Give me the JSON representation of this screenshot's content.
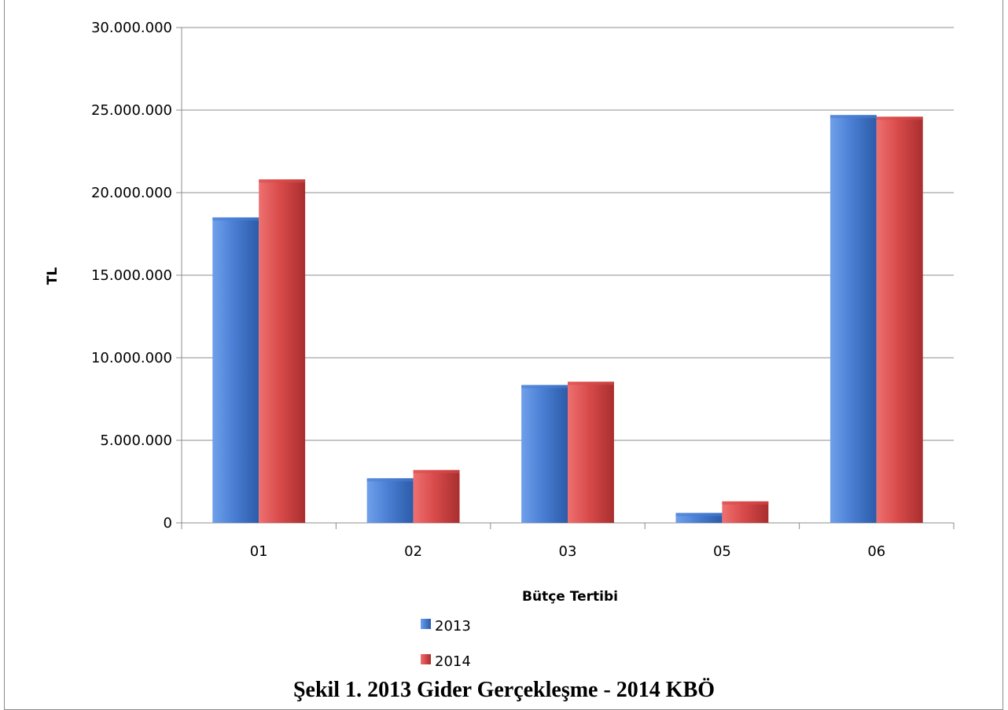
{
  "caption": "Şekil 1. 2013 Gider Gerçekleşme - 2014 KBÖ",
  "chart_data": {
    "type": "bar",
    "categories": [
      "01",
      "02",
      "03",
      "05",
      "06"
    ],
    "series": [
      {
        "name": "2013",
        "values": [
          18500000,
          2700000,
          8350000,
          600000,
          24700000
        ],
        "color": "#4a7fd4"
      },
      {
        "name": "2014",
        "values": [
          20800000,
          3200000,
          8550000,
          1300000,
          24600000
        ],
        "color": "#d94b4b"
      }
    ],
    "title": "",
    "xlabel": "Bütçe Tertibi",
    "ylabel": "TL",
    "ylim": [
      0,
      30000000
    ],
    "yticks": [
      "0",
      "5.000.000",
      "10.000.000",
      "15.000.000",
      "20.000.000",
      "25.000.000",
      "30.000.000"
    ],
    "grid": true,
    "legend_position": "bottom"
  }
}
